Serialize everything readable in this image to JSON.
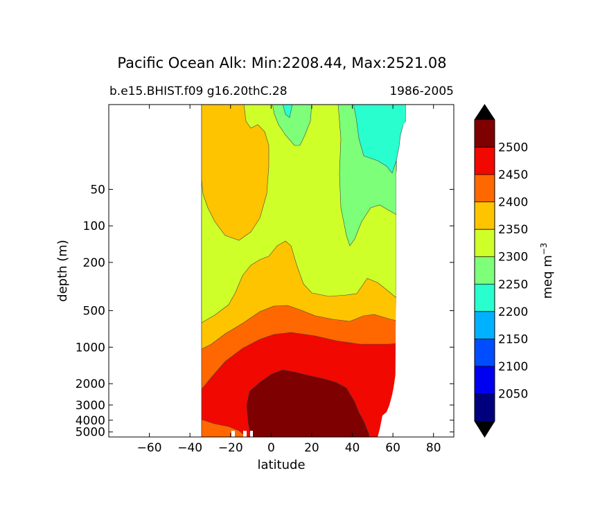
{
  "chart_data": {
    "type": "contourf",
    "title": "Pacific Ocean Alk: Min:2208.44, Max:2521.08",
    "subtitle_left": "b.e15.BHIST.f09 g16.20thC.28",
    "subtitle_right": "1986-2005",
    "xlabel": "latitude",
    "ylabel": "depth (m)",
    "xlim": [
      -80,
      90
    ],
    "ylim": [
      5500,
      10
    ],
    "yscale": "log",
    "xticks": [
      -60,
      -40,
      -20,
      0,
      20,
      40,
      60,
      80
    ],
    "xtick_labels": [
      "−60",
      "−40",
      "−20",
      "0",
      "20",
      "40",
      "60",
      "80"
    ],
    "yticks": [
      50,
      100,
      200,
      500,
      1000,
      2000,
      3000,
      4000,
      5000
    ],
    "ytick_labels": [
      "50",
      "100",
      "200",
      "500",
      "1000",
      "2000",
      "3000",
      "4000",
      "5000"
    ],
    "colorbar": {
      "label": "meq m",
      "label_superscript": "−3",
      "levels": [
        2000,
        2050,
        2100,
        2150,
        2200,
        2250,
        2300,
        2350,
        2400,
        2450,
        2500,
        2550
      ],
      "tick_values": [
        2050,
        2100,
        2150,
        2200,
        2250,
        2300,
        2350,
        2400,
        2450,
        2500
      ],
      "tick_labels": [
        "2050",
        "2100",
        "2150",
        "2200",
        "2250",
        "2300",
        "2350",
        "2400",
        "2450",
        "2500"
      ],
      "colors": [
        "#00007f",
        "#0000f1",
        "#004dff",
        "#00b1ff",
        "#29ffce",
        "#7dff7a",
        "#ceff29",
        "#ffc400",
        "#ff6800",
        "#f10800",
        "#7f0000"
      ],
      "extend": "both",
      "under_color": "#000000",
      "over_color": "#000000"
    },
    "region_colors": {
      "band_2200_2250": "#29ffce",
      "band_2250_2300": "#7dff7a",
      "band_2300_2350": "#ceff29",
      "band_2350_2400": "#ffc400",
      "band_2400_2450": "#ff6800",
      "band_2450_2500": "#f10800",
      "band_2500_2550": "#7f0000"
    }
  }
}
